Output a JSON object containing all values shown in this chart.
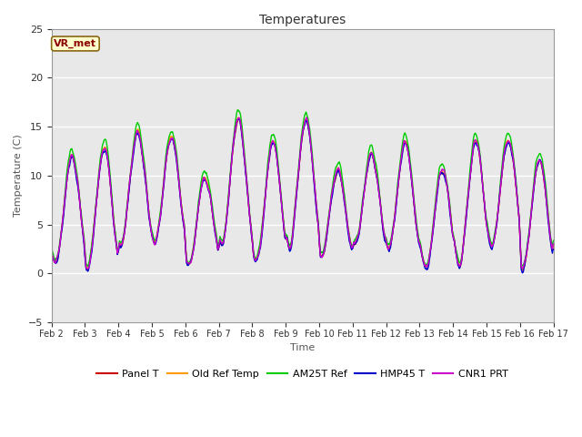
{
  "title": "Temperatures",
  "xlabel": "Time",
  "ylabel": "Temperature (C)",
  "ylim": [
    -5,
    25
  ],
  "annotation": "VR_met",
  "plot_bg_color": "#e8e8e8",
  "fig_bg_color": "#ffffff",
  "series": [
    "Panel T",
    "Old Ref Temp",
    "AM25T Ref",
    "HMP45 T",
    "CNR1 PRT"
  ],
  "colors": [
    "#cc0000",
    "#ff9900",
    "#00cc00",
    "#0000cc",
    "#cc00cc"
  ],
  "x_tick_labels": [
    "Feb 2",
    "Feb 3",
    "Feb 4",
    "Feb 5",
    "Feb 6",
    "Feb 7",
    "Feb 8",
    "Feb 9",
    "Feb 10",
    "Feb 11",
    "Feb 12",
    "Feb 13",
    "Feb 14",
    "Feb 15",
    "Feb 16",
    "Feb 17"
  ],
  "num_days": 15,
  "pts_per_day": 96,
  "line_width": 1.0,
  "title_fontsize": 10,
  "label_fontsize": 8,
  "tick_fontsize": 7,
  "legend_fontsize": 8
}
